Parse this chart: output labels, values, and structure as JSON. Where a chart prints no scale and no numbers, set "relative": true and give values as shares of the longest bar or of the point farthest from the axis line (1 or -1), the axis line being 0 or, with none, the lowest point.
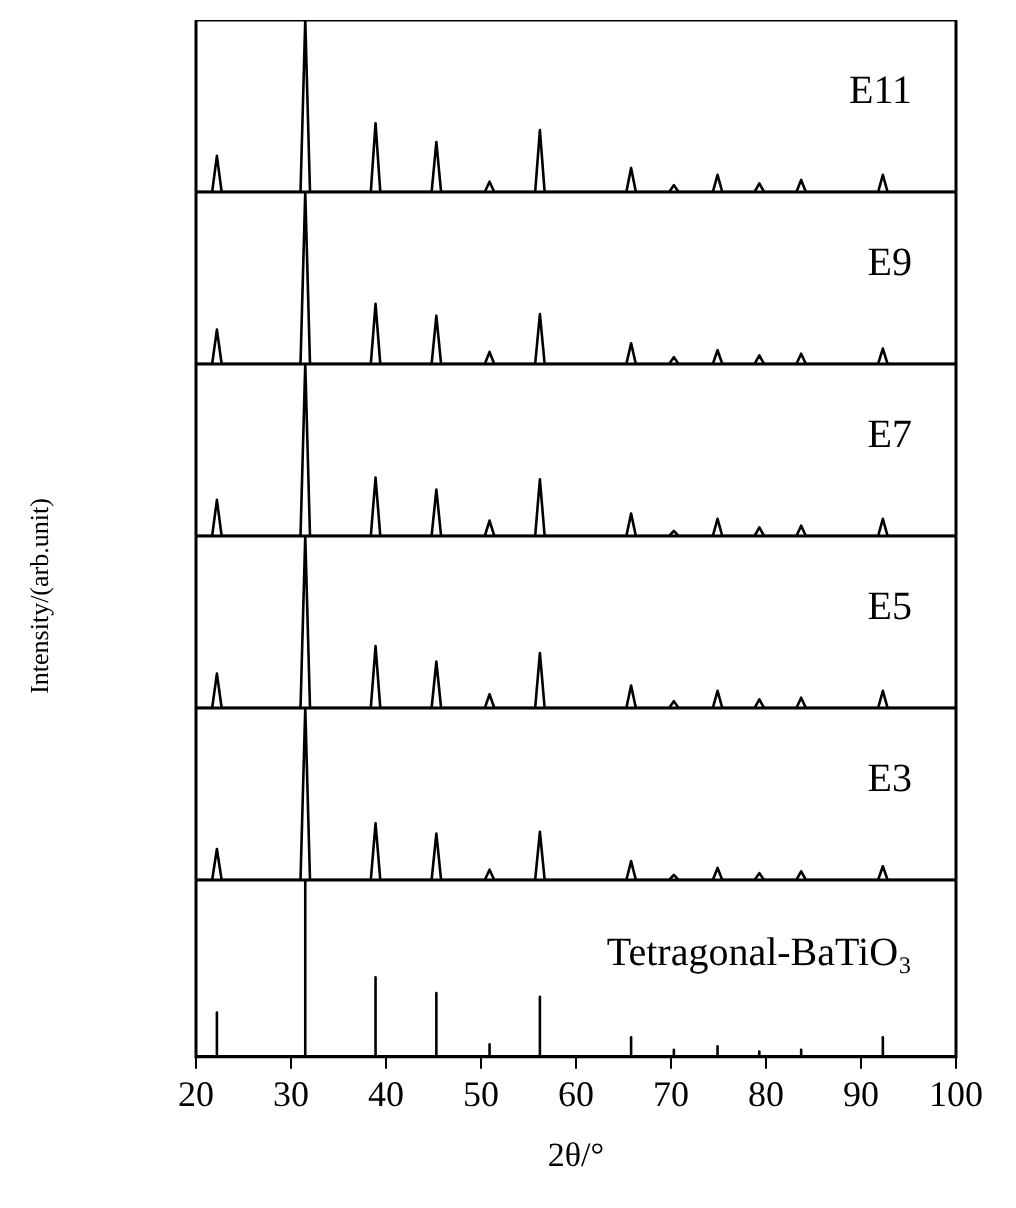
{
  "chart_data": [
    {
      "type": "line",
      "relative": true,
      "marker": "none",
      "xlim": [
        20,
        100
      ],
      "tick_labels": false,
      "x": [
        20,
        21.7,
        22.2,
        22.7,
        31,
        31.5,
        32,
        38.4,
        38.9,
        39.4,
        44.8,
        45.3,
        45.8,
        50.4,
        50.9,
        51.4,
        55.7,
        56.2,
        56.7,
        65.3,
        65.8,
        66.3,
        69.8,
        70.3,
        70.8,
        74.4,
        74.9,
        75.4,
        78.8,
        79.3,
        79.8,
        83.2,
        83.7,
        84.2,
        91.8,
        92.3,
        92.8,
        100
      ],
      "series": [
        {
          "name": "E11",
          "color": "#000000",
          "values": [
            0,
            0,
            0.21,
            0,
            0,
            1,
            0,
            0,
            0.4,
            0,
            0,
            0.29,
            0,
            0,
            0.06,
            0,
            0,
            0.36,
            0,
            0,
            0.14,
            0,
            0,
            0.04,
            0,
            0,
            0.1,
            0,
            0,
            0.05,
            0,
            0,
            0.07,
            0,
            0,
            0.1,
            0,
            0
          ]
        }
      ]
    },
    {
      "type": "line",
      "relative": true,
      "marker": "none",
      "xlim": [
        20,
        100
      ],
      "tick_labels": false,
      "x": [
        20,
        21.7,
        22.2,
        22.7,
        31,
        31.5,
        32,
        38.4,
        38.9,
        39.4,
        44.8,
        45.3,
        45.8,
        50.4,
        50.9,
        51.4,
        55.7,
        56.2,
        56.7,
        65.3,
        65.8,
        66.3,
        69.8,
        70.3,
        70.8,
        74.4,
        74.9,
        75.4,
        78.8,
        79.3,
        79.8,
        83.2,
        83.7,
        84.2,
        91.8,
        92.3,
        92.8,
        100
      ],
      "series": [
        {
          "name": "E9",
          "color": "#000000",
          "values": [
            0,
            0,
            0.2,
            0,
            0,
            1,
            0,
            0,
            0.35,
            0,
            0,
            0.28,
            0,
            0,
            0.07,
            0,
            0,
            0.29,
            0,
            0,
            0.12,
            0,
            0,
            0.04,
            0,
            0,
            0.08,
            0,
            0,
            0.05,
            0,
            0,
            0.06,
            0,
            0,
            0.09,
            0,
            0
          ]
        }
      ]
    },
    {
      "type": "line",
      "relative": true,
      "marker": "none",
      "xlim": [
        20,
        100
      ],
      "tick_labels": false,
      "x": [
        20,
        21.7,
        22.2,
        22.7,
        31,
        31.5,
        32,
        38.4,
        38.9,
        39.4,
        44.8,
        45.3,
        45.8,
        50.4,
        50.9,
        51.4,
        55.7,
        56.2,
        56.7,
        65.3,
        65.8,
        66.3,
        69.8,
        70.3,
        70.8,
        74.4,
        74.9,
        75.4,
        78.8,
        79.3,
        79.8,
        83.2,
        83.7,
        84.2,
        91.8,
        92.3,
        92.8,
        100
      ],
      "series": [
        {
          "name": "E7",
          "color": "#000000",
          "values": [
            0,
            0,
            0.21,
            0,
            0,
            1,
            0,
            0,
            0.34,
            0,
            0,
            0.27,
            0,
            0,
            0.09,
            0,
            0,
            0.33,
            0,
            0,
            0.13,
            0,
            0,
            0.03,
            0,
            0,
            0.1,
            0,
            0,
            0.05,
            0,
            0,
            0.06,
            0,
            0,
            0.1,
            0,
            0
          ]
        }
      ]
    },
    {
      "type": "line",
      "relative": true,
      "marker": "none",
      "xlim": [
        20,
        100
      ],
      "tick_labels": false,
      "x": [
        20,
        21.7,
        22.2,
        22.7,
        31,
        31.5,
        32,
        38.4,
        38.9,
        39.4,
        44.8,
        45.3,
        45.8,
        50.4,
        50.9,
        51.4,
        55.7,
        56.2,
        56.7,
        65.3,
        65.8,
        66.3,
        69.8,
        70.3,
        70.8,
        74.4,
        74.9,
        75.4,
        78.8,
        79.3,
        79.8,
        83.2,
        83.7,
        84.2,
        91.8,
        92.3,
        92.8,
        100
      ],
      "series": [
        {
          "name": "E5",
          "color": "#000000",
          "values": [
            0,
            0,
            0.2,
            0,
            0,
            1,
            0,
            0,
            0.36,
            0,
            0,
            0.27,
            0,
            0,
            0.08,
            0,
            0,
            0.32,
            0,
            0,
            0.13,
            0,
            0,
            0.04,
            0,
            0,
            0.1,
            0,
            0,
            0.05,
            0,
            0,
            0.06,
            0,
            0,
            0.1,
            0,
            0
          ]
        }
      ]
    },
    {
      "type": "line",
      "relative": true,
      "marker": "none",
      "xlim": [
        20,
        100
      ],
      "tick_labels": false,
      "x": [
        20,
        21.7,
        22.2,
        22.7,
        31,
        31.5,
        32,
        38.4,
        38.9,
        39.4,
        44.8,
        45.3,
        45.8,
        50.4,
        50.9,
        51.4,
        55.7,
        56.2,
        56.7,
        65.3,
        65.8,
        66.3,
        69.8,
        70.3,
        70.8,
        74.4,
        74.9,
        75.4,
        78.8,
        79.3,
        79.8,
        83.2,
        83.7,
        84.2,
        91.8,
        92.3,
        92.8,
        100
      ],
      "series": [
        {
          "name": "E3",
          "color": "#000000",
          "values": [
            0,
            0,
            0.18,
            0,
            0,
            1,
            0,
            0,
            0.33,
            0,
            0,
            0.27,
            0,
            0,
            0.06,
            0,
            0,
            0.28,
            0,
            0,
            0.11,
            0,
            0,
            0.03,
            0,
            0,
            0.07,
            0,
            0,
            0.04,
            0,
            0,
            0.05,
            0,
            0,
            0.08,
            0,
            0
          ]
        }
      ]
    },
    {
      "type": "line",
      "relative": true,
      "marker": "none",
      "xlim": [
        20,
        100
      ],
      "xticks": [
        20,
        30,
        40,
        50,
        60,
        70,
        80,
        90,
        100
      ],
      "tick_labels": "x",
      "xlabel": "2θ/°",
      "ylabel": "Intensity/(arb.unit)",
      "x": [
        20,
        22.2,
        22.2,
        22.2,
        31.5,
        31.5,
        31.5,
        38.9,
        38.9,
        38.9,
        45.3,
        45.3,
        45.3,
        50.9,
        50.9,
        50.9,
        56.2,
        56.2,
        56.2,
        65.8,
        65.8,
        65.8,
        70.3,
        70.3,
        70.3,
        74.9,
        74.9,
        74.9,
        79.3,
        79.3,
        79.3,
        83.7,
        83.7,
        83.7,
        92.3,
        92.3,
        92.3,
        100
      ],
      "series": [
        {
          "name": "Tetragonal-BaTiO₃",
          "color": "#000000",
          "values": [
            0,
            0,
            0.25,
            0,
            0,
            1,
            0,
            0,
            0.45,
            0,
            0,
            0.36,
            0,
            0,
            0.07,
            0,
            0,
            0.34,
            0,
            0,
            0.11,
            0,
            0,
            0.04,
            0,
            0,
            0.06,
            0,
            0,
            0.03,
            0,
            0,
            0.04,
            0,
            0,
            0.11,
            0,
            0
          ]
        }
      ]
    }
  ]
}
